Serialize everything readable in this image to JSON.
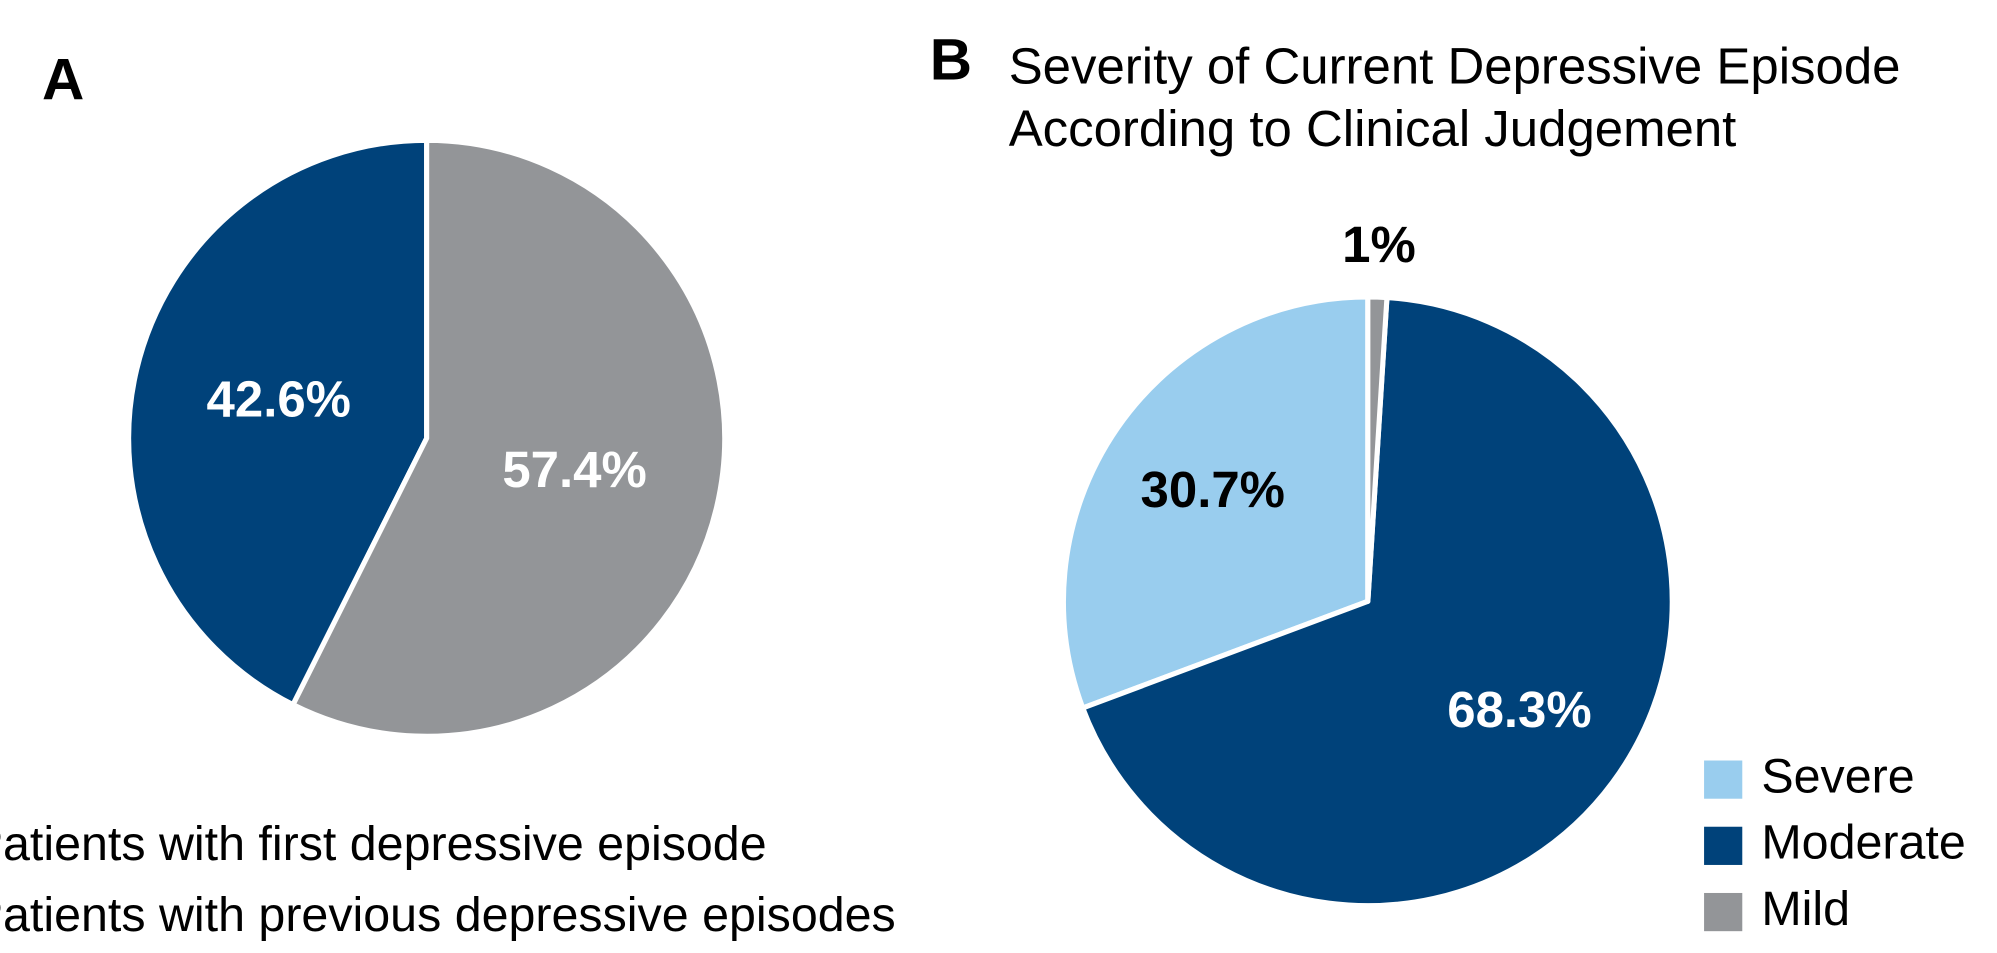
{
  "chart_data": [
    {
      "type": "pie",
      "label": "A",
      "categories": [
        "Patients with first depressive episode",
        "Patients with previous depressive episodes"
      ],
      "values": [
        42.6,
        57.4
      ],
      "value_labels": [
        "42.6%",
        "57.4%"
      ],
      "colors": [
        "#00427a",
        "#939598"
      ],
      "label_colors": [
        "#ffffff",
        "#ffffff"
      ]
    },
    {
      "type": "pie",
      "label": "B",
      "title": [
        "Severity of Current Depressive Episode",
        "According to Clinical Judgement"
      ],
      "categories": [
        "Severe",
        "Moderate",
        "Mild"
      ],
      "values": [
        30.7,
        68.3,
        1
      ],
      "value_labels": [
        "30.7%",
        "68.3%",
        "1%"
      ],
      "colors": [
        "#99cdee",
        "#00427a",
        "#939598"
      ],
      "label_colors": [
        "#000000",
        "#ffffff",
        "#000000"
      ]
    }
  ]
}
